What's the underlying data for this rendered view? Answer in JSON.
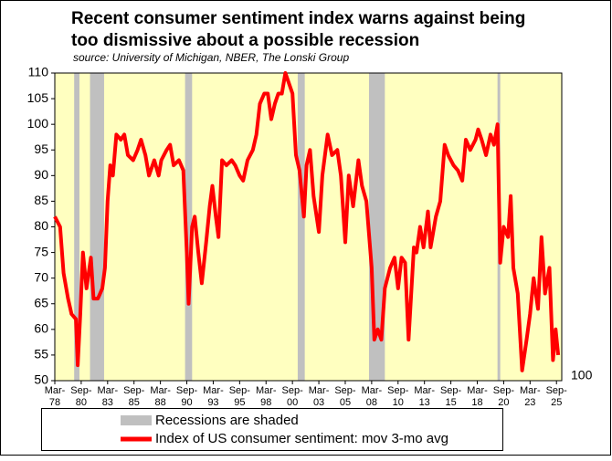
{
  "chart_data": {
    "type": "line",
    "title": [
      "Recent consumer sentiment index warns against being",
      "too dismissive about a possible recession"
    ],
    "subtitle": "source: University of Michigan, NBER, The Lonski Group",
    "annotation": "100",
    "xlim": [
      "1978-03",
      "2026-03"
    ],
    "ylim": [
      50,
      110
    ],
    "yticks": [
      50,
      55,
      60,
      65,
      70,
      75,
      80,
      85,
      90,
      95,
      100,
      105,
      110
    ],
    "xticks": [
      {
        "value": "1978-03",
        "label": [
          "Mar-",
          "78"
        ]
      },
      {
        "value": "1980-09",
        "label": [
          "Sep-",
          "80"
        ]
      },
      {
        "value": "1983-03",
        "label": [
          "Mar-",
          "83"
        ]
      },
      {
        "value": "1985-09",
        "label": [
          "Sep-",
          "85"
        ]
      },
      {
        "value": "1988-03",
        "label": [
          "Mar-",
          "88"
        ]
      },
      {
        "value": "1990-09",
        "label": [
          "Sep-",
          "90"
        ]
      },
      {
        "value": "1993-03",
        "label": [
          "Mar-",
          "93"
        ]
      },
      {
        "value": "1995-09",
        "label": [
          "Sep-",
          "95"
        ]
      },
      {
        "value": "1998-03",
        "label": [
          "Mar-",
          "98"
        ]
      },
      {
        "value": "2000-09",
        "label": [
          "Sep-",
          "00"
        ]
      },
      {
        "value": "2003-03",
        "label": [
          "Mar-",
          "03"
        ]
      },
      {
        "value": "2005-09",
        "label": [
          "Sep-",
          "05"
        ]
      },
      {
        "value": "2008-03",
        "label": [
          "Mar-",
          "08"
        ]
      },
      {
        "value": "2010-09",
        "label": [
          "Sep-",
          "10"
        ]
      },
      {
        "value": "2013-03",
        "label": [
          "Mar-",
          "13"
        ]
      },
      {
        "value": "2015-09",
        "label": [
          "Sep-",
          "15"
        ]
      },
      {
        "value": "2018-03",
        "label": [
          "Mar-",
          "18"
        ]
      },
      {
        "value": "2020-09",
        "label": [
          "Sep-",
          "20"
        ]
      },
      {
        "value": "2023-03",
        "label": [
          "Mar-",
          "23"
        ]
      },
      {
        "value": "2025-09",
        "label": [
          "Sep-",
          "25"
        ]
      }
    ],
    "background": "#ffffc0",
    "recessions": {
      "name": "Recessions are shaded",
      "color": "#c0c0c0",
      "periods": [
        [
          "1980-01",
          "1980-07"
        ],
        [
          "1981-07",
          "1982-11"
        ],
        [
          "1990-07",
          "1991-03"
        ],
        [
          "2001-03",
          "2001-11"
        ],
        [
          "2007-12",
          "2009-06"
        ],
        [
          "2020-02",
          "2020-04"
        ]
      ]
    },
    "x": [
      "1978-03",
      "1978-09",
      "1979-01",
      "1979-06",
      "1979-10",
      "1980-03",
      "1980-05",
      "1980-08",
      "1980-11",
      "1981-03",
      "1981-08",
      "1981-11",
      "1982-04",
      "1982-09",
      "1982-12",
      "1983-03",
      "1983-06",
      "1983-09",
      "1984-01",
      "1984-06",
      "1984-10",
      "1985-02",
      "1985-08",
      "1986-01",
      "1986-05",
      "1986-10",
      "1987-02",
      "1987-08",
      "1988-01",
      "1988-04",
      "1988-10",
      "1989-02",
      "1989-06",
      "1989-12",
      "1990-05",
      "1990-09",
      "1990-11",
      "1991-03",
      "1991-06",
      "1991-10",
      "1992-02",
      "1992-07",
      "1992-11",
      "1993-02",
      "1993-06",
      "1993-09",
      "1994-01",
      "1994-06",
      "1994-12",
      "1995-04",
      "1995-09",
      "1996-01",
      "1996-06",
      "1996-12",
      "1997-04",
      "1997-08",
      "1998-01",
      "1998-05",
      "1998-09",
      "1999-01",
      "1999-05",
      "1999-09",
      "2000-01",
      "2000-05",
      "2000-09",
      "2001-01",
      "2001-05",
      "2001-10",
      "2002-01",
      "2002-05",
      "2002-09",
      "2003-03",
      "2003-07",
      "2004-01",
      "2004-06",
      "2004-12",
      "2005-04",
      "2005-09",
      "2006-01",
      "2006-06",
      "2006-12",
      "2007-04",
      "2007-09",
      "2008-03",
      "2008-06",
      "2008-10",
      "2009-02",
      "2009-06",
      "2009-12",
      "2010-05",
      "2010-09",
      "2011-01",
      "2011-05",
      "2011-09",
      "2012-03",
      "2012-06",
      "2012-10",
      "2013-02",
      "2013-07",
      "2013-10",
      "2014-04",
      "2014-09",
      "2015-02",
      "2015-06",
      "2015-12",
      "2016-05",
      "2016-10",
      "2017-02",
      "2017-07",
      "2018-01",
      "2018-04",
      "2018-08",
      "2019-01",
      "2019-06",
      "2019-10",
      "2020-02",
      "2020-05",
      "2020-09",
      "2021-02",
      "2021-05",
      "2021-08",
      "2022-01",
      "2022-06",
      "2022-11",
      "2023-03",
      "2023-07",
      "2023-12",
      "2024-04",
      "2024-08",
      "2025-01",
      "2025-05",
      "2025-08",
      "2025-11"
    ],
    "series": [
      {
        "name": "Index of US consumer sentiment: mov 3-mo avg",
        "color": "#ff0000",
        "values": [
          82,
          80,
          71,
          66,
          63,
          62,
          53,
          63,
          75,
          68,
          74,
          66,
          66,
          68,
          72,
          85,
          92,
          90,
          98,
          97,
          98,
          94,
          93,
          95,
          97,
          94,
          90,
          93,
          90,
          93,
          95,
          96,
          92,
          93,
          91,
          75,
          65,
          80,
          82,
          75,
          69,
          77,
          84,
          88,
          82,
          78,
          93,
          92,
          93,
          92,
          90,
          89,
          93,
          95,
          98,
          104,
          106,
          106,
          101,
          104,
          106,
          106,
          110,
          108,
          106,
          94,
          91,
          82,
          92,
          95,
          86,
          79,
          90,
          98,
          94,
          95,
          90,
          77,
          90,
          84,
          93,
          88,
          85,
          72,
          58,
          60,
          58,
          68,
          72,
          74,
          68,
          74,
          73,
          58,
          76,
          75,
          80,
          76,
          83,
          76,
          82,
          85,
          96,
          94,
          92,
          91,
          89,
          97,
          95,
          97,
          99,
          97,
          94,
          98,
          96,
          100,
          73,
          80,
          78,
          86,
          72,
          67,
          52,
          58,
          63,
          70,
          64,
          78,
          67,
          72,
          54,
          60,
          55
        ]
      }
    ]
  }
}
